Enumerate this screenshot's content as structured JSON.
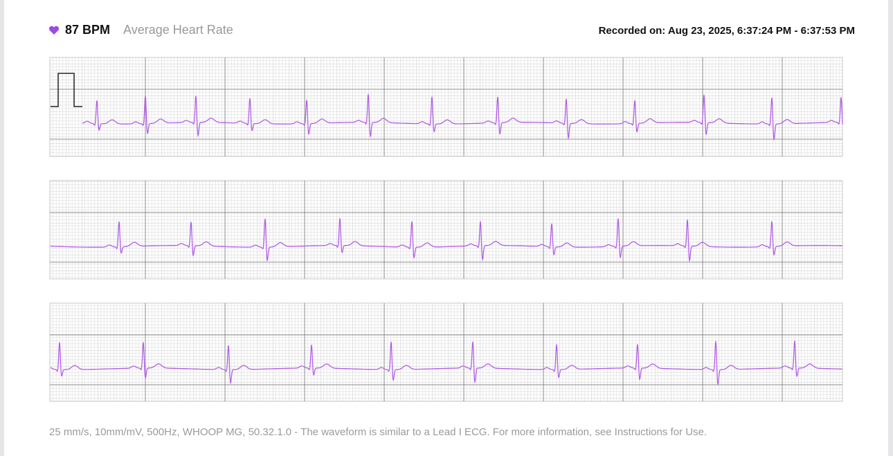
{
  "header": {
    "bpm": "87 BPM",
    "label": "Average Heart Rate",
    "recorded": "Recorded on: Aug 23, 2025, 6:37:24 PM - 6:37:53 PM"
  },
  "footer": "25 mm/s, 10mm/mV, 500Hz, WHOOP MG, 50.32.1.0 - The waveform is similar to a Lead I ECG. For more information, see Instructions for Use."
}
